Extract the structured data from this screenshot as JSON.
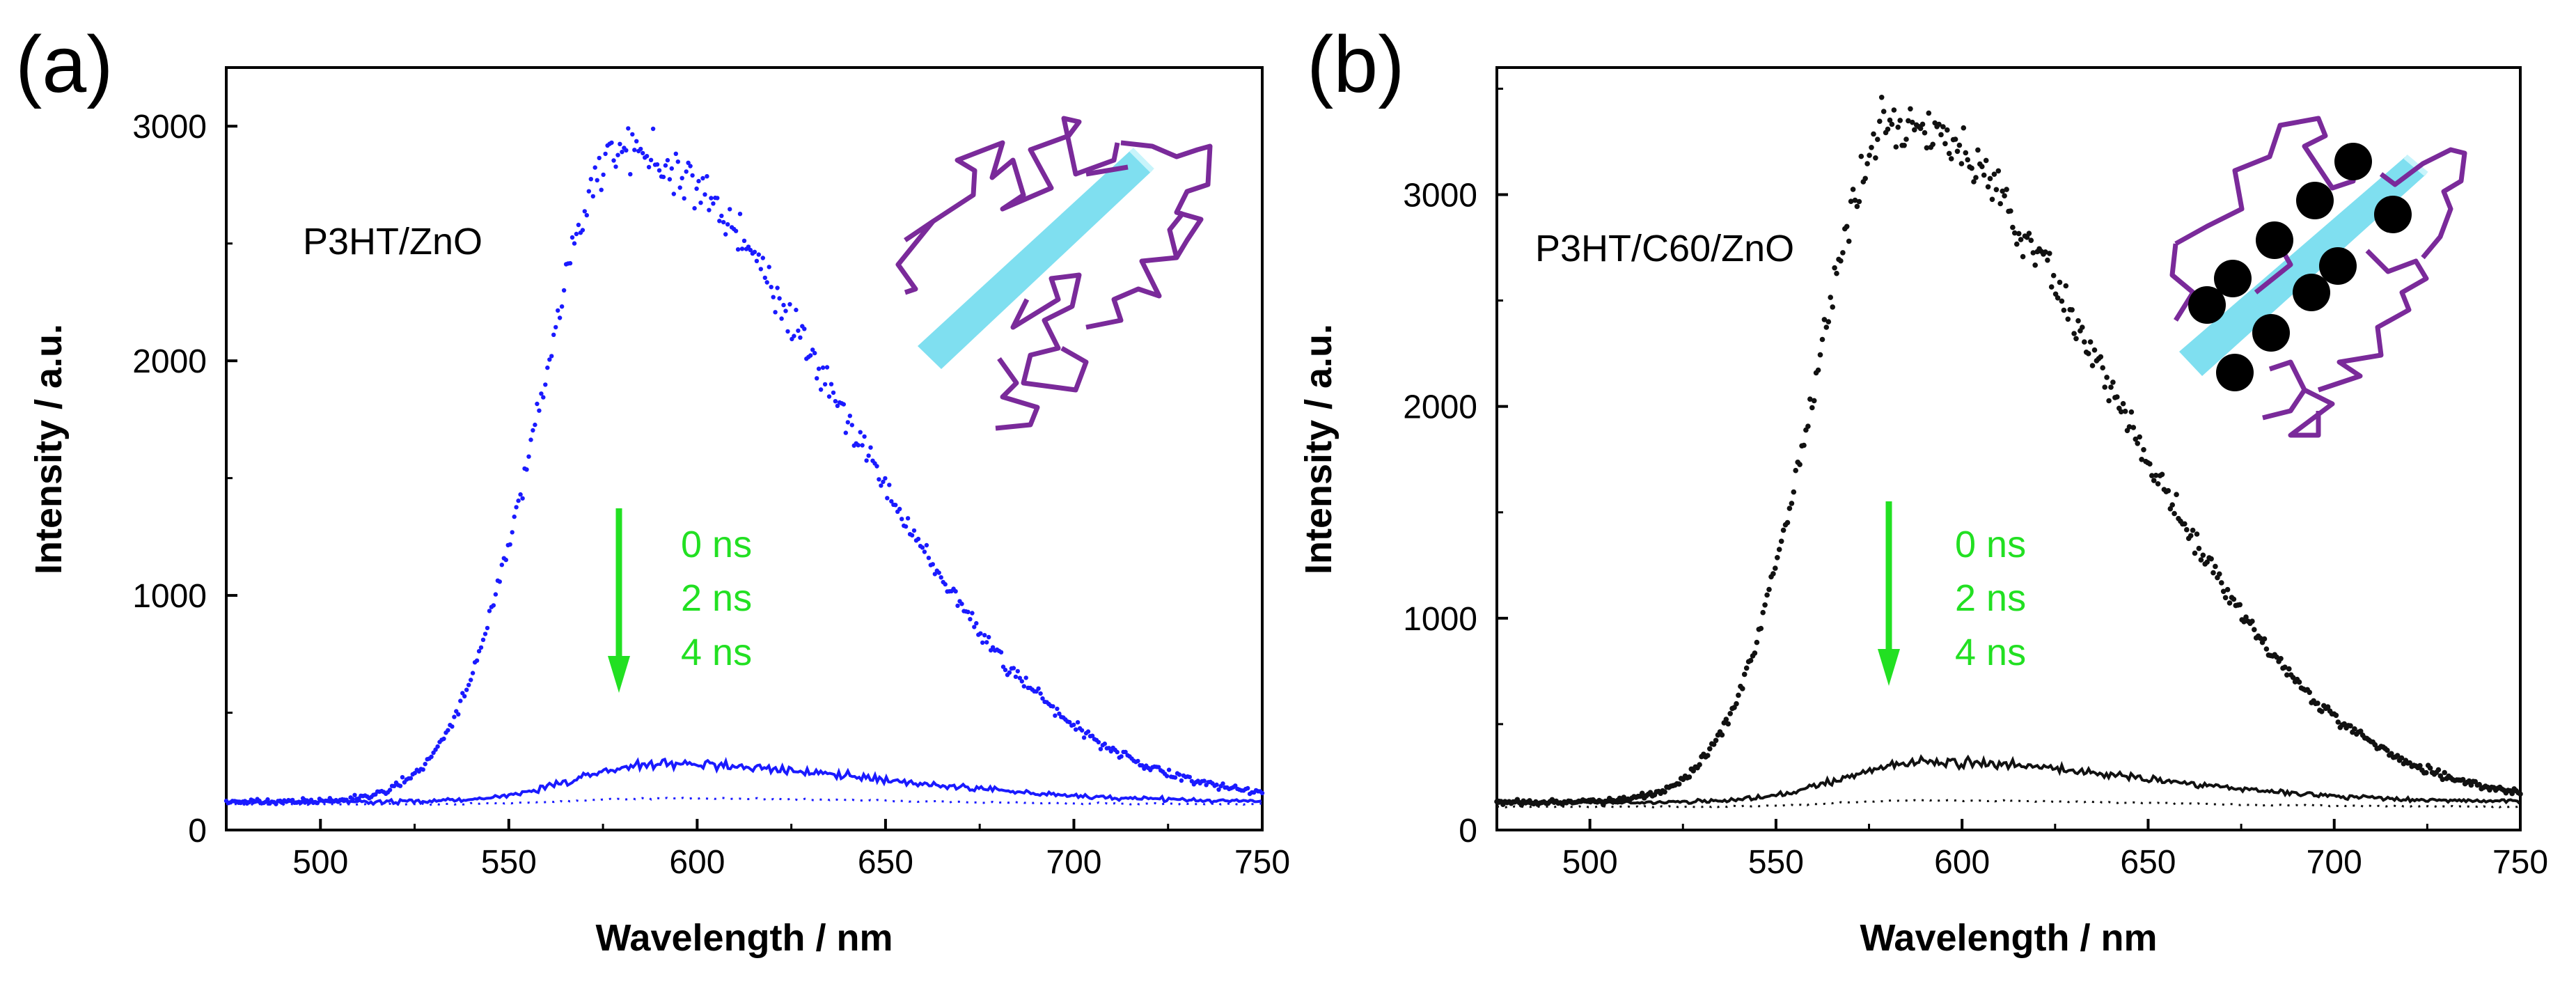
{
  "chart_data": [
    {
      "panel_label": "(a)",
      "type": "scatter",
      "annotation": "P3HT/ZnO",
      "xlabel": "Wavelength / nm",
      "ylabel": "Intensity / a.u.",
      "xlim": [
        475,
        750
      ],
      "ylim": [
        0,
        3250
      ],
      "xticks": [
        "500",
        "550",
        "600",
        "650",
        "700",
        "750"
      ],
      "yticks": [
        "0",
        "1000",
        "2000",
        "3000"
      ],
      "time_legend": [
        "0 ns",
        "2 ns",
        "4 ns"
      ],
      "colors": {
        "series": "#1a1aff",
        "arrow": "#22e022",
        "legend": "#22e022",
        "rod": "#7fdff0",
        "chain": "#7a2a9a"
      },
      "inset": "P3HT chains wrapped around ZnO nanorod",
      "series": [
        {
          "name": "0 ns",
          "style": "points",
          "peak_x": 580,
          "peak_y": 2900,
          "baseline": 120
        },
        {
          "name": "2 ns",
          "style": "solid",
          "peak_x": 590,
          "peak_y": 280,
          "baseline": 120
        },
        {
          "name": "4 ns",
          "style": "dotted",
          "peak_x": 590,
          "peak_y": 135,
          "baseline": 110
        }
      ]
    },
    {
      "panel_label": "(b)",
      "type": "scatter",
      "annotation": "P3HT/C60/ZnO",
      "xlabel": "Wavelength / nm",
      "ylabel": "Intensity / a.u.",
      "xlim": [
        475,
        750
      ],
      "ylim": [
        0,
        3600
      ],
      "xticks": [
        "500",
        "550",
        "600",
        "650",
        "700",
        "750"
      ],
      "yticks": [
        "0",
        "1000",
        "2000",
        "3000"
      ],
      "time_legend": [
        "0 ns",
        "2 ns",
        "4 ns"
      ],
      "colors": {
        "series": "#111111",
        "arrow": "#22e022",
        "legend": "#22e022",
        "rod": "#7fdff0",
        "chain": "#7a2a9a",
        "c60": "#000000"
      },
      "inset": "P3HT chains and C60 molecules on ZnO nanorod",
      "series": [
        {
          "name": "0 ns",
          "style": "points",
          "peak_x": 582,
          "peak_y": 3350,
          "baseline": 130
        },
        {
          "name": "2 ns",
          "style": "solid",
          "peak_x": 590,
          "peak_y": 320,
          "baseline": 130
        },
        {
          "name": "4 ns",
          "style": "dotted",
          "peak_x": 590,
          "peak_y": 140,
          "baseline": 110
        }
      ]
    }
  ]
}
